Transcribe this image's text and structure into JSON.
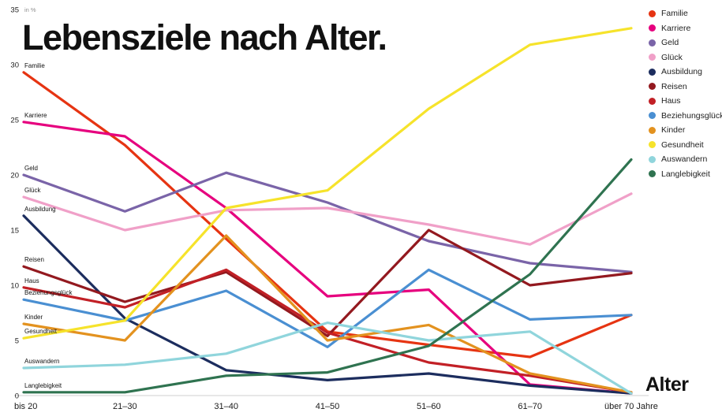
{
  "title": {
    "text": "Lebensziele nach Alter."
  },
  "axis": {
    "unit": "in %",
    "x_title": "Alter"
  },
  "chart_data": {
    "type": "line",
    "title": "Lebensziele nach Alter.",
    "xlabel": "Alter",
    "ylabel": "in %",
    "ylim": [
      0,
      35
    ],
    "yticks": [
      0,
      5,
      10,
      15,
      20,
      25,
      30,
      35
    ],
    "grid": false,
    "legend_position": "top-right",
    "categories": [
      "bis 20",
      "21–30",
      "31–40",
      "41–50",
      "51–60",
      "61–70",
      "über 70 Jahre"
    ],
    "series": [
      {
        "name": "Familie",
        "color": "#e63412",
        "values": [
          29.3,
          22.7,
          14.2,
          5.8,
          4.6,
          3.5,
          7.3
        ]
      },
      {
        "name": "Karriere",
        "color": "#e6007e",
        "values": [
          24.8,
          23.5,
          17.0,
          9.0,
          9.6,
          1.0,
          0.2
        ]
      },
      {
        "name": "Geld",
        "color": "#7a64a8",
        "values": [
          20.0,
          16.7,
          20.2,
          17.5,
          14.0,
          12.0,
          11.2
        ]
      },
      {
        "name": "Glück",
        "color": "#f0a0c8",
        "values": [
          18.0,
          15.0,
          16.8,
          17.0,
          15.5,
          13.7,
          18.3
        ]
      },
      {
        "name": "Ausbildung",
        "color": "#1c2d5e",
        "values": [
          16.3,
          7.0,
          2.3,
          1.4,
          2.0,
          0.9,
          0.2
        ]
      },
      {
        "name": "Reisen",
        "color": "#93191f",
        "values": [
          11.7,
          8.5,
          11.2,
          5.4,
          15.0,
          10.0,
          11.1
        ]
      },
      {
        "name": "Haus",
        "color": "#c22026",
        "values": [
          9.8,
          8.0,
          11.4,
          5.7,
          3.0,
          1.8,
          0.3
        ]
      },
      {
        "name": "Beziehungsglück",
        "color": "#4a8fd2",
        "values": [
          8.7,
          6.8,
          9.5,
          4.4,
          11.4,
          6.9,
          7.3
        ]
      },
      {
        "name": "Kinder",
        "color": "#e3921f",
        "values": [
          6.5,
          5.0,
          14.5,
          5.0,
          6.4,
          2.0,
          0.3
        ]
      },
      {
        "name": "Gesundheit",
        "color": "#f6e32b",
        "values": [
          5.2,
          6.8,
          17.0,
          18.6,
          26.0,
          31.8,
          33.3
        ]
      },
      {
        "name": "Auswandern",
        "color": "#90d5dc",
        "values": [
          2.5,
          2.8,
          3.8,
          6.6,
          5.0,
          5.8,
          0.2
        ]
      },
      {
        "name": "Langlebigkeit",
        "color": "#2f7350",
        "values": [
          0.3,
          0.3,
          1.8,
          2.1,
          4.5,
          11.0,
          21.4
        ]
      }
    ]
  }
}
